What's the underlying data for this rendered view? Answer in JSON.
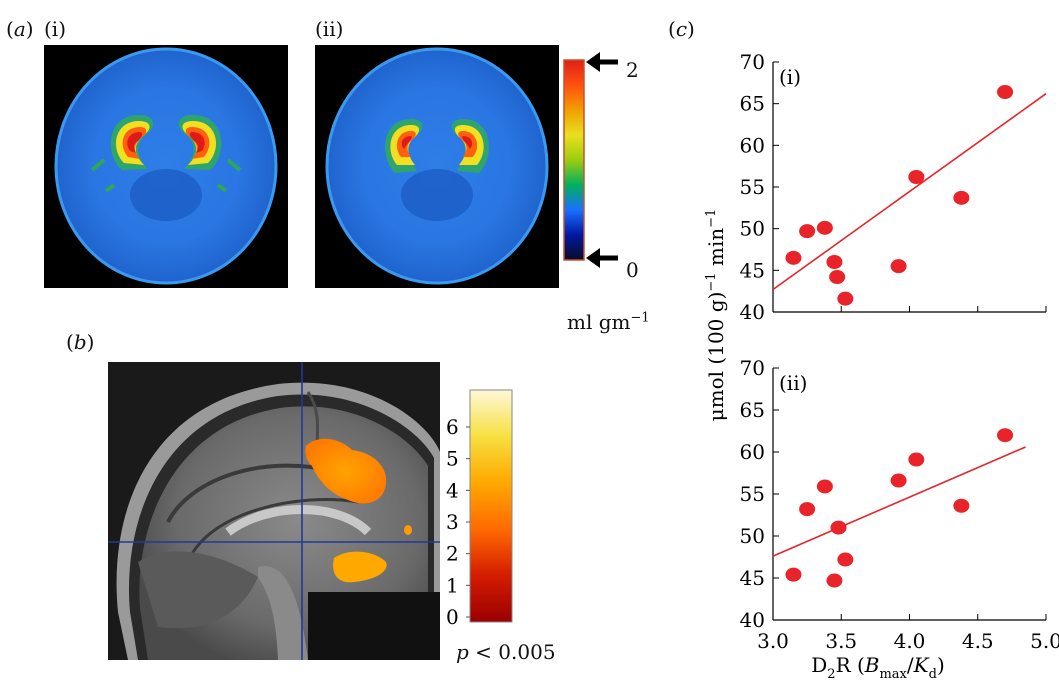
{
  "panel_a": {
    "letter": "a",
    "sub_i": "(i)",
    "sub_ii": "(ii)",
    "colorbar": {
      "max_label": "2",
      "min_label": "0",
      "unit_label": "ml gm",
      "unit_sup": "−1",
      "colors": [
        "#0a0a2a",
        "#0018a0",
        "#1a70ff",
        "#00b060",
        "#9ccc10",
        "#e8e020",
        "#f0a000",
        "#ff5010",
        "#e02018"
      ]
    }
  },
  "panel_b": {
    "letter": "b",
    "colorbar": {
      "ticks": [
        "6",
        "5",
        "4",
        "3",
        "2",
        "1",
        "0"
      ],
      "colors": [
        "#9a0000",
        "#d41c00",
        "#ff6a00",
        "#ffa800",
        "#f6e040",
        "#fff8d8"
      ]
    },
    "p_label": "p",
    "p_value": " < 0.005"
  },
  "panel_c": {
    "letter": "c",
    "y_axis_label": "μmol (100 g)^−1 min^−1",
    "x_axis_label": "D2R (Bmax/Kd)"
  },
  "chart_data": [
    {
      "type": "scatter",
      "panel": "(i)",
      "xlim": [
        3.0,
        5.0
      ],
      "ylim": [
        40,
        70
      ],
      "yticks": [
        40,
        45,
        50,
        55,
        60,
        65,
        70
      ],
      "x": [
        3.15,
        3.25,
        3.38,
        3.45,
        3.47,
        3.53,
        3.92,
        4.05,
        4.38,
        4.7
      ],
      "y": [
        46.5,
        49.7,
        50.1,
        46.0,
        44.2,
        41.6,
        45.5,
        56.2,
        53.7,
        66.4
      ],
      "fit_line": {
        "x": [
          3.0,
          5.0
        ],
        "y": [
          42.7,
          66.2
        ]
      },
      "point_color": "#e8232a",
      "line_color": "#e8232a",
      "grid": false
    },
    {
      "type": "scatter",
      "panel": "(ii)",
      "xlim": [
        3.0,
        5.0
      ],
      "ylim": [
        40,
        70
      ],
      "yticks": [
        40,
        45,
        50,
        55,
        60,
        65,
        70
      ],
      "xticks": [
        "3.0",
        "3.5",
        "4.0",
        "4.5",
        "5.0"
      ],
      "x": [
        3.15,
        3.25,
        3.38,
        3.45,
        3.48,
        3.53,
        3.92,
        4.05,
        4.38,
        4.7
      ],
      "y": [
        45.4,
        53.2,
        55.9,
        44.7,
        51.0,
        47.2,
        56.6,
        59.1,
        53.6,
        62.0
      ],
      "fit_line": {
        "x": [
          3.0,
          4.85
        ],
        "y": [
          47.6,
          60.6
        ]
      },
      "point_color": "#e8232a",
      "line_color": "#e8232a",
      "grid": false
    }
  ]
}
